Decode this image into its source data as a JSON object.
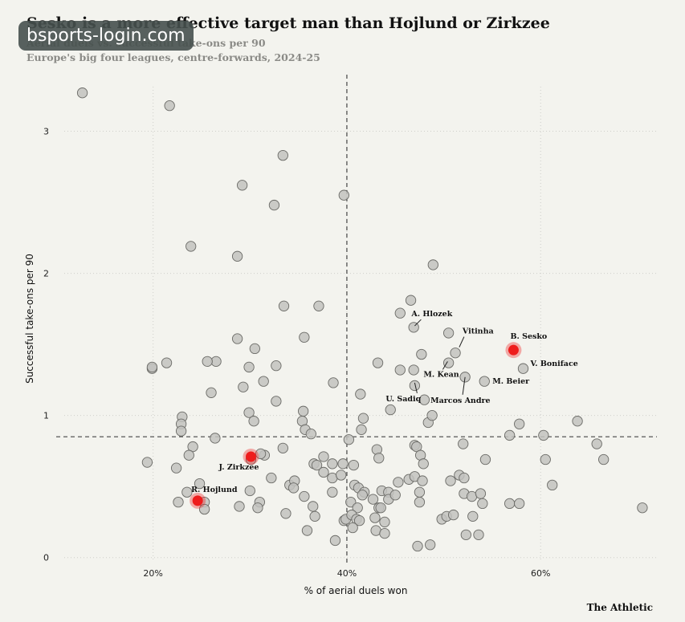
{
  "header": {
    "title": "Sesko is a more effective target man than Hojlund or Zirkzee",
    "subtitle_line1": "Aerial duels vs. successful take-ons per 90",
    "subtitle_line2": "Europe's big four leagues, centre-forwards, 2024-25",
    "watermark": "bsports-login.com",
    "brand": "The Athletic"
  },
  "colors": {
    "background": "#f3f3ee",
    "point_fill": "#c2c2be",
    "point_stroke": "#6a6a66",
    "highlight": "#ee1c1c",
    "reference_line": "#444444",
    "grid": "#cfcfca"
  },
  "chart_data": {
    "type": "scatter",
    "title": "Sesko is a more effective target man than Hojlund or Zirkzee",
    "subtitle": "Europe's big four leagues, centre-forwards, 2024-25",
    "xlabel": "% of aerial duels won",
    "ylabel": "Successful take-ons per 90",
    "xlim": [
      10,
      72
    ],
    "ylim": [
      -0.03,
      3.37
    ],
    "xticks": [
      {
        "value": 20,
        "label": "20%"
      },
      {
        "value": 40,
        "label": "40%"
      },
      {
        "value": 60,
        "label": "60%"
      }
    ],
    "yticks": [
      {
        "value": 0,
        "label": "0"
      },
      {
        "value": 1,
        "label": "1"
      },
      {
        "value": 2,
        "label": "2"
      },
      {
        "value": 3,
        "label": "3"
      }
    ],
    "grid": true,
    "reference_lines": {
      "x": 40,
      "y": 0.85
    },
    "points": [
      [
        12.7,
        3.27
      ],
      [
        21.7,
        3.18
      ],
      [
        33.4,
        2.83
      ],
      [
        29.2,
        2.62
      ],
      [
        32.5,
        2.48
      ],
      [
        39.7,
        2.55
      ],
      [
        23.9,
        2.19
      ],
      [
        28.7,
        2.12
      ],
      [
        48.9,
        2.06
      ],
      [
        33.5,
        1.77
      ],
      [
        37.1,
        1.77
      ],
      [
        46.6,
        1.81
      ],
      [
        45.5,
        1.72
      ],
      [
        28.7,
        1.54
      ],
      [
        35.6,
        1.55
      ],
      [
        30.5,
        1.47
      ],
      [
        50.5,
        1.58
      ],
      [
        46.9,
        1.62
      ],
      [
        21.4,
        1.37
      ],
      [
        19.9,
        1.33
      ],
      [
        19.9,
        1.34
      ],
      [
        26.5,
        1.38
      ],
      [
        25.6,
        1.38
      ],
      [
        29.9,
        1.34
      ],
      [
        32.7,
        1.35
      ],
      [
        43.2,
        1.37
      ],
      [
        46.9,
        1.32
      ],
      [
        45.5,
        1.32
      ],
      [
        47.7,
        1.43
      ],
      [
        51.2,
        1.44
      ],
      [
        50.5,
        1.37
      ],
      [
        38.6,
        1.23
      ],
      [
        31.4,
        1.24
      ],
      [
        29.3,
        1.2
      ],
      [
        26.0,
        1.16
      ],
      [
        32.7,
        1.1
      ],
      [
        41.4,
        1.15
      ],
      [
        52.2,
        1.27
      ],
      [
        54.2,
        1.24
      ],
      [
        58.2,
        1.33
      ],
      [
        47.0,
        1.21
      ],
      [
        48.0,
        1.11
      ],
      [
        23.0,
        0.99
      ],
      [
        22.9,
        0.94
      ],
      [
        22.9,
        0.89
      ],
      [
        29.9,
        1.02
      ],
      [
        30.4,
        0.96
      ],
      [
        35.4,
        0.96
      ],
      [
        35.5,
        1.03
      ],
      [
        35.7,
        0.9
      ],
      [
        36.3,
        0.87
      ],
      [
        41.7,
        0.98
      ],
      [
        41.5,
        0.9
      ],
      [
        44.5,
        1.04
      ],
      [
        48.4,
        0.95
      ],
      [
        48.8,
        1.0
      ],
      [
        57.8,
        0.94
      ],
      [
        63.8,
        0.96
      ],
      [
        56.8,
        0.86
      ],
      [
        60.3,
        0.86
      ],
      [
        26.4,
        0.84
      ],
      [
        24.1,
        0.78
      ],
      [
        33.4,
        0.77
      ],
      [
        40.2,
        0.83
      ],
      [
        19.4,
        0.67
      ],
      [
        22.4,
        0.63
      ],
      [
        23.7,
        0.72
      ],
      [
        31.5,
        0.72
      ],
      [
        30.1,
        0.69
      ],
      [
        31.1,
        0.73
      ],
      [
        36.6,
        0.66
      ],
      [
        37.6,
        0.71
      ],
      [
        38.5,
        0.66
      ],
      [
        39.6,
        0.66
      ],
      [
        40.7,
        0.65
      ],
      [
        43.1,
        0.76
      ],
      [
        43.3,
        0.7
      ],
      [
        47.0,
        0.79
      ],
      [
        47.2,
        0.78
      ],
      [
        47.6,
        0.72
      ],
      [
        47.9,
        0.66
      ],
      [
        52.0,
        0.8
      ],
      [
        54.3,
        0.69
      ],
      [
        60.5,
        0.69
      ],
      [
        66.5,
        0.69
      ],
      [
        65.8,
        0.8
      ],
      [
        32.2,
        0.56
      ],
      [
        34.1,
        0.51
      ],
      [
        34.6,
        0.54
      ],
      [
        36.9,
        0.65
      ],
      [
        37.6,
        0.6
      ],
      [
        38.5,
        0.56
      ],
      [
        39.4,
        0.58
      ],
      [
        40.8,
        0.51
      ],
      [
        41.2,
        0.49
      ],
      [
        41.8,
        0.46
      ],
      [
        43.6,
        0.47
      ],
      [
        44.3,
        0.46
      ],
      [
        45.3,
        0.53
      ],
      [
        46.4,
        0.55
      ],
      [
        47.0,
        0.57
      ],
      [
        47.8,
        0.54
      ],
      [
        50.7,
        0.54
      ],
      [
        51.6,
        0.58
      ],
      [
        52.1,
        0.56
      ],
      [
        61.2,
        0.51
      ],
      [
        23.5,
        0.46
      ],
      [
        24.8,
        0.52
      ],
      [
        22.6,
        0.39
      ],
      [
        25.3,
        0.39
      ],
      [
        25.3,
        0.34
      ],
      [
        28.9,
        0.36
      ],
      [
        30.0,
        0.47
      ],
      [
        31.0,
        0.39
      ],
      [
        30.8,
        0.35
      ],
      [
        34.5,
        0.49
      ],
      [
        35.6,
        0.43
      ],
      [
        36.5,
        0.36
      ],
      [
        38.5,
        0.46
      ],
      [
        40.4,
        0.39
      ],
      [
        41.1,
        0.35
      ],
      [
        41.6,
        0.44
      ],
      [
        42.7,
        0.41
      ],
      [
        43.3,
        0.35
      ],
      [
        44.3,
        0.41
      ],
      [
        45.0,
        0.44
      ],
      [
        47.5,
        0.46
      ],
      [
        47.5,
        0.39
      ],
      [
        52.1,
        0.45
      ],
      [
        52.9,
        0.43
      ],
      [
        53.8,
        0.45
      ],
      [
        54.0,
        0.38
      ],
      [
        56.8,
        0.38
      ],
      [
        57.8,
        0.38
      ],
      [
        70.5,
        0.35
      ],
      [
        33.7,
        0.31
      ],
      [
        36.7,
        0.29
      ],
      [
        39.7,
        0.26
      ],
      [
        39.9,
        0.27
      ],
      [
        40.5,
        0.3
      ],
      [
        41.0,
        0.27
      ],
      [
        41.3,
        0.26
      ],
      [
        42.9,
        0.28
      ],
      [
        43.5,
        0.35
      ],
      [
        43.9,
        0.25
      ],
      [
        49.8,
        0.27
      ],
      [
        50.3,
        0.29
      ],
      [
        51.0,
        0.3
      ],
      [
        53.0,
        0.29
      ],
      [
        35.9,
        0.19
      ],
      [
        38.8,
        0.12
      ],
      [
        40.6,
        0.21
      ],
      [
        43.0,
        0.19
      ],
      [
        43.9,
        0.17
      ],
      [
        52.3,
        0.16
      ],
      [
        53.6,
        0.16
      ],
      [
        47.3,
        0.08
      ],
      [
        48.6,
        0.09
      ]
    ],
    "highlighted": [
      {
        "label": "B. Sesko",
        "x": 57.2,
        "y": 1.46
      },
      {
        "label": "J. Zirkzee",
        "x": 30.1,
        "y": 0.71
      },
      {
        "label": "R. Hojlund",
        "x": 24.6,
        "y": 0.4
      }
    ],
    "annotations": [
      {
        "label": "A. Hlozek",
        "x": 47.0,
        "y": 1.63
      },
      {
        "label": "Vitinha",
        "x": 51.6,
        "y": 1.48
      },
      {
        "label": "M. Kean",
        "x": 50.4,
        "y": 1.38
      },
      {
        "label": "U. Sadiq",
        "x": 47.0,
        "y": 1.23
      },
      {
        "label": "M. Beier",
        "x": 54.2,
        "y": 1.24
      },
      {
        "label": "Marcos Andre",
        "x": 52.2,
        "y": 1.27
      },
      {
        "label": "V. Boniface",
        "x": 58.2,
        "y": 1.33
      }
    ]
  }
}
